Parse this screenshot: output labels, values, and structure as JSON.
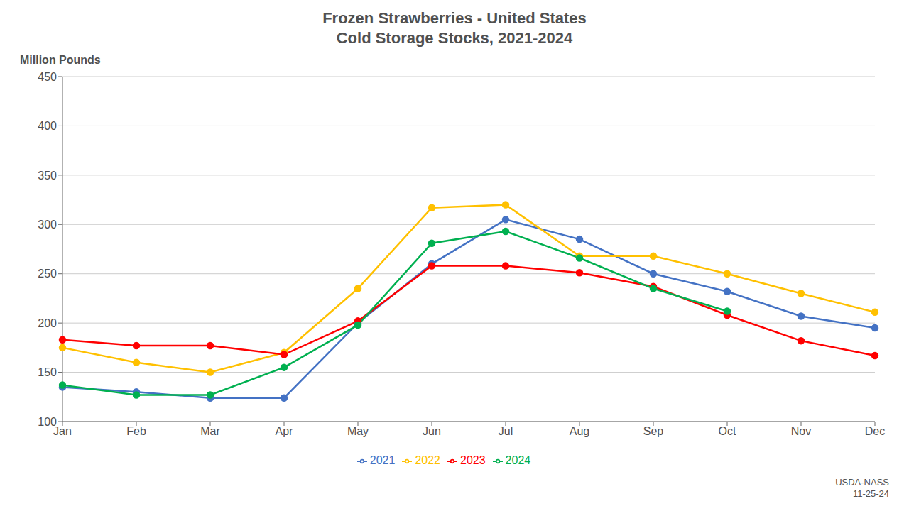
{
  "chart_data": {
    "type": "line",
    "title": "Frozen Strawberries  - United States",
    "subtitle": "Cold Storage Stocks, 2021-2024",
    "y_label": "Million Pounds",
    "annotations": [
      "USDA-NASS\n11-25-24"
    ],
    "categories": [
      "Jan",
      "Feb",
      "Mar",
      "Apr",
      "May",
      "Jun",
      "Jul",
      "Aug",
      "Sep",
      "Oct",
      "Nov",
      "Dec"
    ],
    "series": [
      {
        "name": "2021",
        "color": "#4472C4",
        "values": [
          135,
          130,
          124,
          124,
          200,
          260,
          305,
          285,
          250,
          232,
          207,
          195
        ]
      },
      {
        "name": "2022",
        "color": "#FFC000",
        "values": [
          175,
          160,
          150,
          170,
          235,
          317,
          320,
          268,
          268,
          250,
          230,
          211
        ]
      },
      {
        "name": "2023",
        "color": "#FF0000",
        "values": [
          183,
          177,
          177,
          168,
          202,
          258,
          258,
          251,
          237,
          208,
          182,
          167
        ]
      },
      {
        "name": "2024",
        "color": "#00B050",
        "values": [
          137,
          127,
          127,
          155,
          198,
          281,
          293,
          266,
          235,
          212,
          null,
          null
        ]
      }
    ],
    "ylim": [
      100,
      450
    ],
    "yticks": [
      100,
      150,
      200,
      250,
      300,
      350,
      400,
      450
    ],
    "grid": true,
    "legend": "bottom",
    "marker": "circle"
  }
}
